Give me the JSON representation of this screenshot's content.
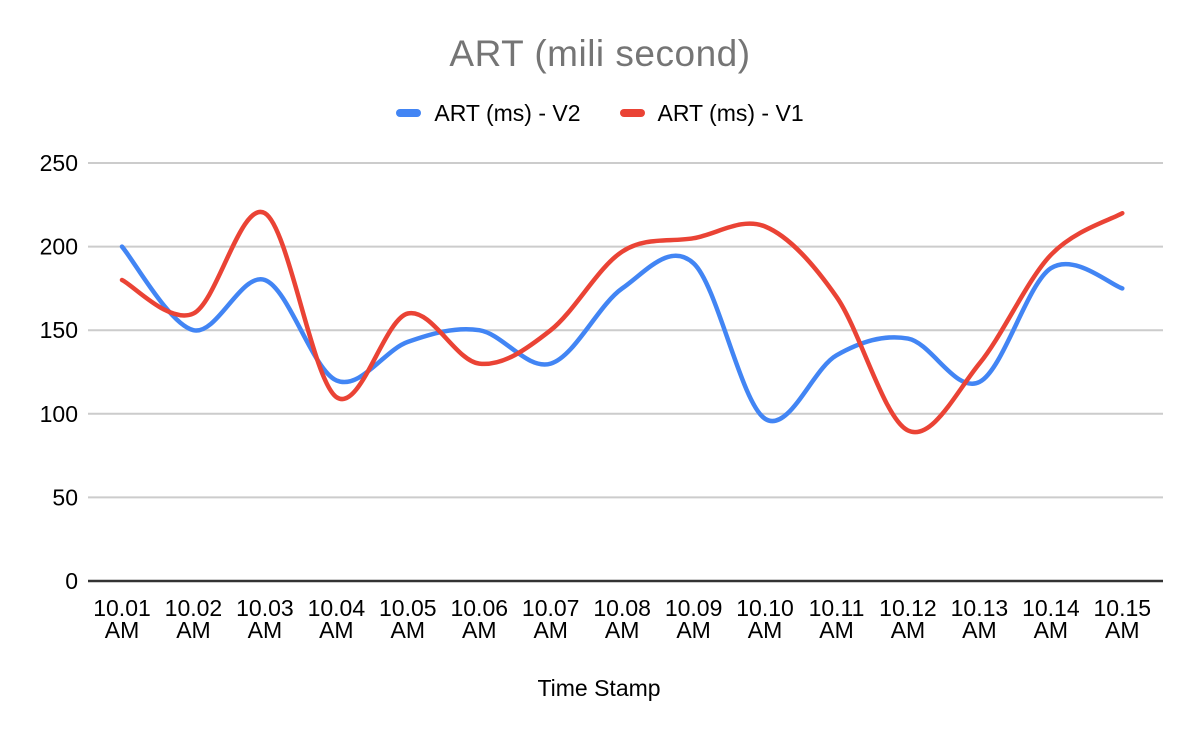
{
  "page": {
    "background": "#ffffff"
  },
  "chart_data": {
    "type": "line",
    "title": "ART (mili second)",
    "xlabel": "Time Stamp",
    "ylabel": "",
    "categories": [
      "10.01 AM",
      "10.02 AM",
      "10.03 AM",
      "10.04 AM",
      "10.05 AM",
      "10.06 AM",
      "10.07 AM",
      "10.08 AM",
      "10.09 AM",
      "10.10 AM",
      "10.11 AM",
      "10.12 AM",
      "10.13 AM",
      "10.14 AM",
      "10.15 AM"
    ],
    "y_ticks": [
      0,
      50,
      100,
      150,
      200,
      250
    ],
    "ylim": [
      0,
      250
    ],
    "grid": true,
    "smooth": true,
    "legend_position": "top",
    "series": [
      {
        "name": "ART (ms) - V2",
        "color": "#4285F4",
        "values": [
          200,
          150,
          180,
          120,
          143,
          150,
          130,
          175,
          190,
          97,
          135,
          145,
          119,
          187,
          175
        ]
      },
      {
        "name": "ART (ms) - V1",
        "color": "#EA4335",
        "values": [
          180,
          160,
          220,
          110,
          160,
          130,
          150,
          197,
          205,
          212,
          170,
          90,
          130,
          195,
          220
        ]
      }
    ],
    "colors": {
      "title_text": "#757575",
      "label_text": "#000000",
      "grid": "#cccccc",
      "axis_line": "#333333",
      "background": "#ffffff"
    }
  }
}
